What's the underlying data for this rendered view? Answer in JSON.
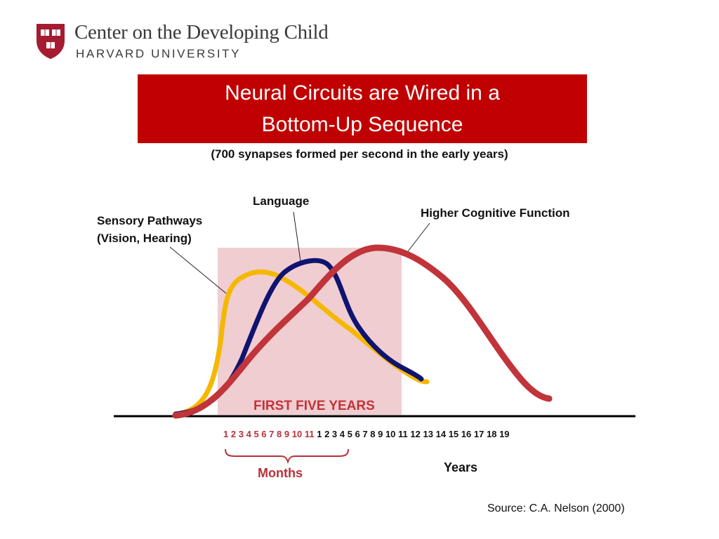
{
  "header": {
    "org_name": "Center on the Developing Child",
    "org_sub": "HARVARD UNIVERSITY",
    "logo_icon": "harvard-shield-icon",
    "logo_text": "VE RI TAS"
  },
  "title": {
    "line1": "Neural Circuits are Wired in a",
    "line2": "Bottom-Up Sequence"
  },
  "subtitle": "(700 synapses formed per second in the early years)",
  "labels": {
    "language": "Language",
    "sensory_line1": "Sensory Pathways",
    "sensory_line2": "(Vision, Hearing)",
    "higher": "Higher Cognitive Function",
    "first_five": "FIRST FIVE YEARS",
    "months": "Months",
    "years": "Years"
  },
  "axis": {
    "months": [
      "1",
      "2",
      "3",
      "4",
      "5",
      "6",
      "7",
      "8",
      "9",
      "10",
      "11"
    ],
    "years": [
      "1",
      "2",
      "3",
      "4",
      "5",
      "6",
      "7",
      "8",
      "9",
      "10",
      "11",
      "12",
      "13",
      "14",
      "15",
      "16",
      "17",
      "18",
      "19"
    ]
  },
  "colors": {
    "title_bg": "#c00000",
    "sensory": "#f5b800",
    "language": "#0f1470",
    "higher": "#c0343a",
    "first_five_shade": "#f0cdd1",
    "months_text": "#b83038"
  },
  "source": "Source: C.A. Nelson (2000)"
}
